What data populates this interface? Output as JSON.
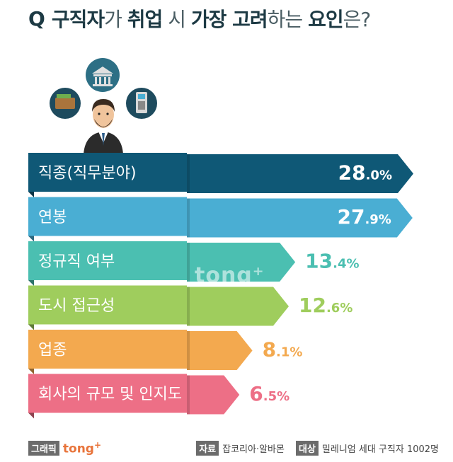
{
  "header": {
    "q_mark": "Q",
    "title_parts": [
      {
        "text": "구직자",
        "bold": true
      },
      {
        "text": "가 ",
        "bold": false
      },
      {
        "text": "취업",
        "bold": true
      },
      {
        "text": " 시 ",
        "bold": false
      },
      {
        "text": "가장 고려",
        "bold": true
      },
      {
        "text": "하는 ",
        "bold": false
      },
      {
        "text": "요인",
        "bold": true
      },
      {
        "text": "은?",
        "bold": false
      }
    ]
  },
  "chart_data": {
    "type": "bar",
    "orientation": "horizontal",
    "categories": [
      "직종(직무분야)",
      "연봉",
      "정규직 여부",
      "도시 접근성",
      "업종",
      "회사의 규모 및 인지도"
    ],
    "values": [
      28.0,
      27.9,
      13.4,
      12.6,
      8.1,
      6.5
    ],
    "value_labels": [
      {
        "int": "28",
        "dec": ".0%"
      },
      {
        "int": "27",
        "dec": ".9%"
      },
      {
        "int": "13",
        "dec": ".4%"
      },
      {
        "int": "12",
        "dec": ".6%"
      },
      {
        "int": "8",
        "dec": ".1%"
      },
      {
        "int": "6",
        "dec": ".5%"
      }
    ],
    "colors": [
      "#0f5876",
      "#4aaed3",
      "#4bbfb1",
      "#9fcd5d",
      "#f3a94f",
      "#ed6f86"
    ],
    "label_colors_inside": [
      "#ffffff",
      "#ffffff"
    ],
    "label_colors_outside": [
      "#4bbfb1",
      "#9fcd5d",
      "#f3a94f",
      "#ed6f86"
    ],
    "xlim": [
      0,
      28.0
    ]
  },
  "watermark": "tong⁺",
  "footer": {
    "graphic_tag": "그래픽",
    "brand": "tong",
    "brand_sup": "+",
    "source_tag": "자료",
    "source_text": "잡코리아·알바몬",
    "target_tag": "대상",
    "target_text": "밀레니엄 세대 구직자 1002명"
  }
}
